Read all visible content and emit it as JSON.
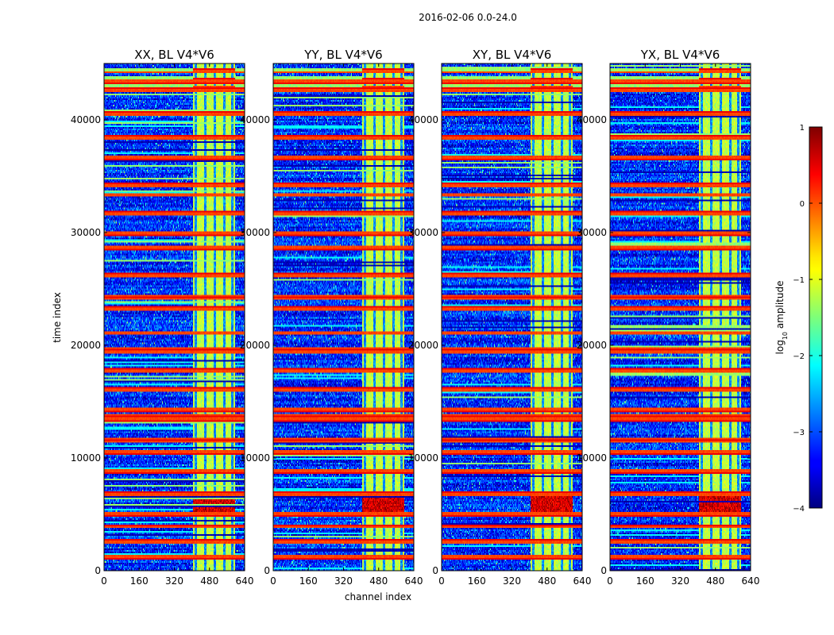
{
  "figure": {
    "suptitle": "2016-02-06 0.0-24.0"
  },
  "chart_data": {
    "type": "heatmap",
    "suptitle": "2016-02-06 0.0-24.0",
    "panels": [
      {
        "title": "XX, BL V4*V6",
        "key": "xx"
      },
      {
        "title": "YY, BL V4*V6",
        "key": "yy"
      },
      {
        "title": "XY, BL V4*V6",
        "key": "xy"
      },
      {
        "title": "YX, BL V4*V6",
        "key": "yx"
      }
    ],
    "xlabel": "channel index",
    "ylabel": "time index",
    "xlim": [
      0,
      640
    ],
    "ylim": [
      0,
      45000
    ],
    "x_ticks": [
      0,
      160,
      320,
      480,
      640
    ],
    "x_tick_labels": [
      "0",
      "160",
      "320",
      "480",
      "640"
    ],
    "y_ticks": [
      0,
      10000,
      20000,
      30000,
      40000
    ],
    "y_tick_labels": [
      "0",
      "10000",
      "20000",
      "30000",
      "40000"
    ],
    "colorbar": {
      "label": "log10 amplitude",
      "label_base": "log",
      "label_sub": "10",
      "label_rest": " amplitude",
      "range": [
        -4,
        1
      ],
      "ticks": [
        1,
        0,
        -1,
        -2,
        -3,
        -4
      ],
      "tick_labels": [
        "1",
        "0",
        "−1",
        "−2",
        "−3",
        "−4"
      ]
    },
    "features": {
      "bright_band_channels": [
        405,
        600
      ],
      "bright_band_level": -1.2,
      "background_level": -3.2,
      "strong_burst_time": [
        4800,
        6800
      ],
      "strong_burst_level": 0.6,
      "edge_flagged_time": [
        42500,
        45000
      ],
      "flagged_rows_time_ranges": [
        [
          44200,
          44500
        ],
        [
          43200,
          43700
        ],
        [
          42600,
          42900
        ],
        [
          40400,
          40700
        ],
        [
          38300,
          38600
        ],
        [
          36500,
          36800
        ],
        [
          34100,
          34400
        ],
        [
          33200,
          33400
        ],
        [
          31600,
          31900
        ],
        [
          29800,
          30000
        ],
        [
          28500,
          28800
        ],
        [
          26100,
          26300
        ],
        [
          24100,
          24400
        ],
        [
          23200,
          23400
        ],
        [
          21000,
          21200
        ],
        [
          19300,
          19700
        ],
        [
          17600,
          17900
        ],
        [
          16000,
          16200
        ],
        [
          14200,
          14400
        ],
        [
          13300,
          13800
        ],
        [
          11500,
          11700
        ],
        [
          10400,
          10600
        ],
        [
          8700,
          8900
        ],
        [
          6700,
          6900
        ],
        [
          4900,
          5100
        ],
        [
          3800,
          4000
        ],
        [
          2500,
          2700
        ],
        [
          1100,
          1300
        ]
      ]
    }
  }
}
